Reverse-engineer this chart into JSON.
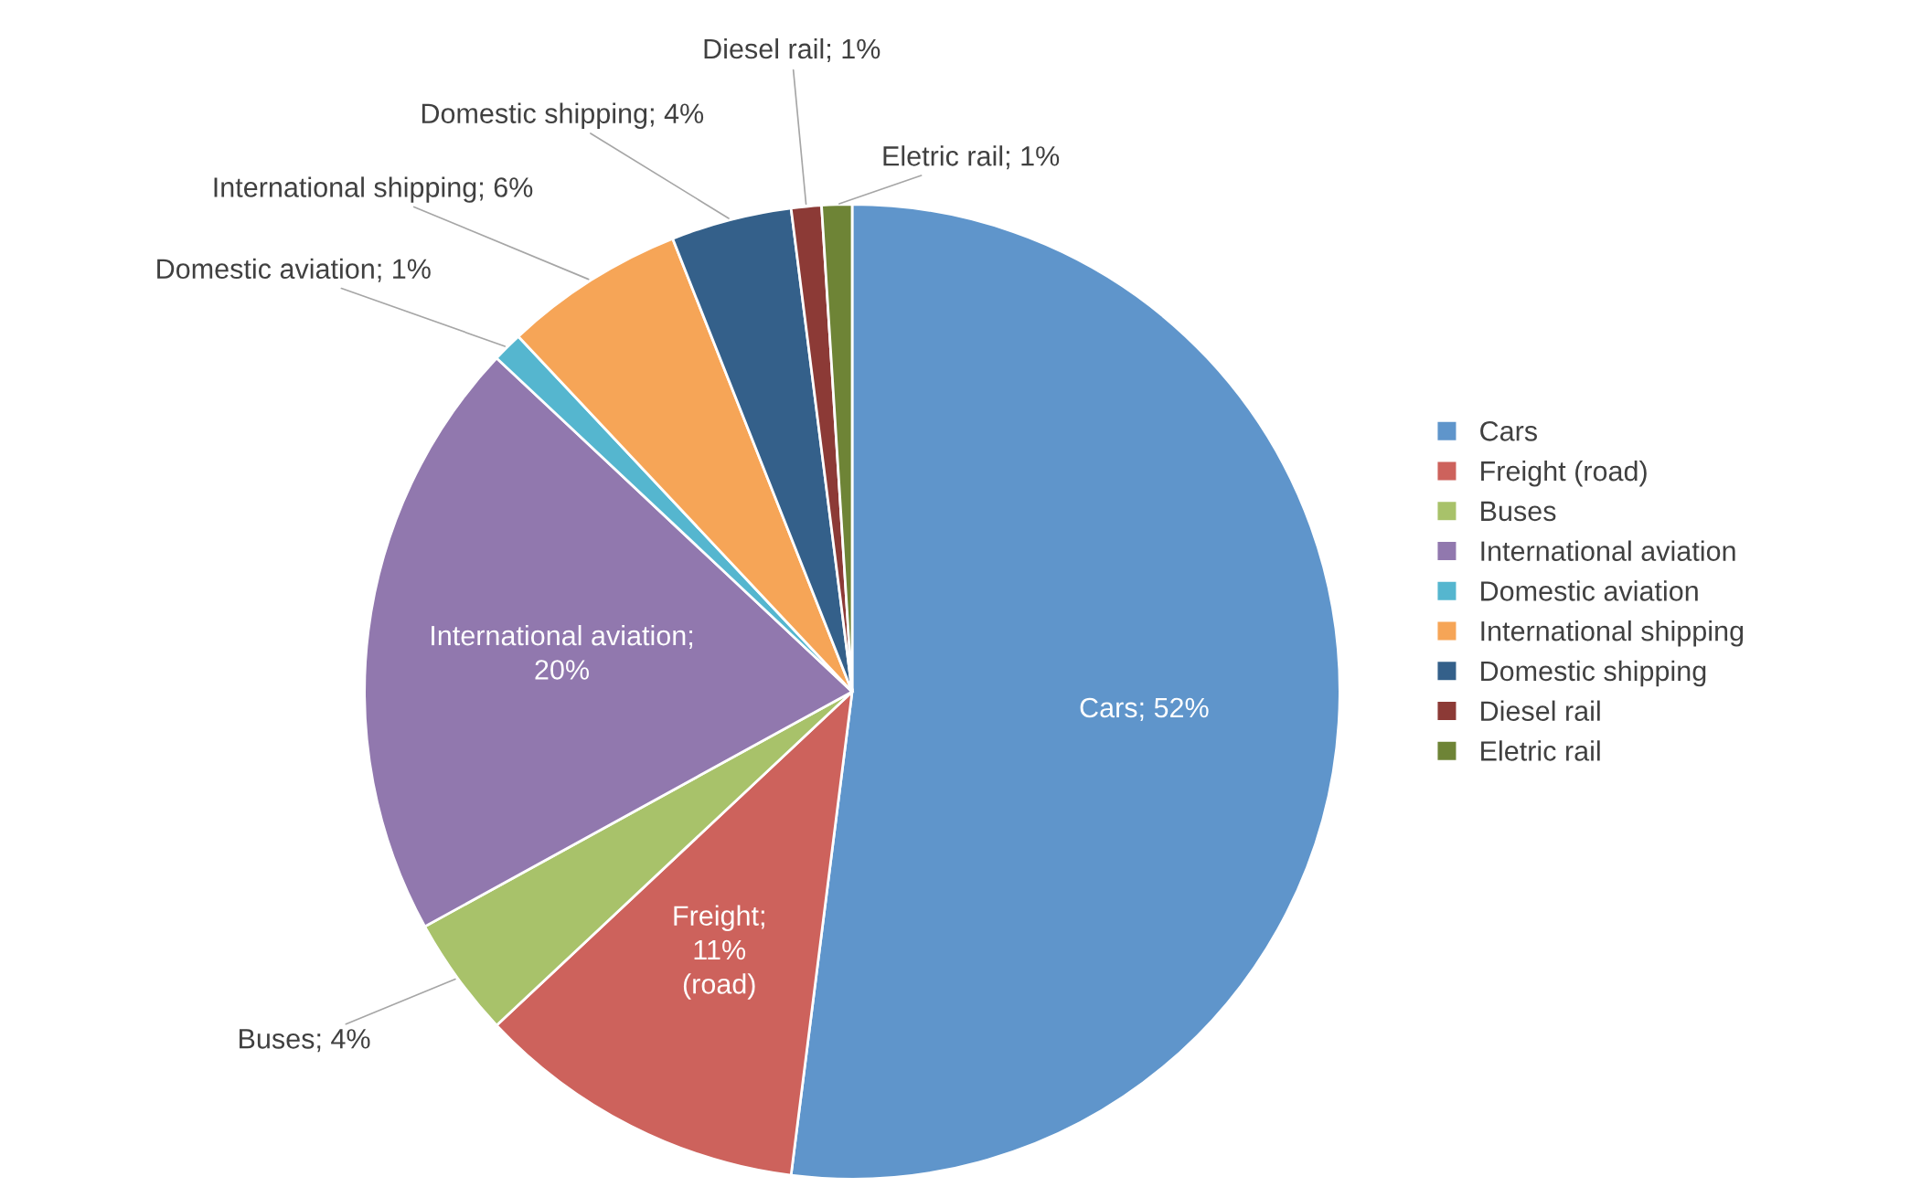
{
  "chart_data": {
    "type": "pie",
    "categories": [
      "Cars",
      "Freight (road)",
      "Buses",
      "International aviation",
      "Domestic aviation",
      "International shipping",
      "Domestic shipping",
      "Diesel rail",
      "Eletric rail"
    ],
    "values": [
      52,
      11,
      4,
      20,
      1,
      6,
      4,
      1,
      1
    ],
    "colors": [
      "#5f95cb",
      "#cd625c",
      "#a8c26a",
      "#9178ae",
      "#55b6cf",
      "#f6a557",
      "#34608a",
      "#8c3a36",
      "#6e8436"
    ],
    "value_labels": [
      "Cars; 52%",
      "Freight;\n11%\n(road)",
      "Buses; 4%",
      "International aviation;\n20%",
      "Domestic aviation; 1%",
      "International shipping; 6%",
      "Domestic shipping; 4%",
      "Diesel rail; 1%",
      "Eletric rail; 1%"
    ],
    "legend": "right"
  }
}
